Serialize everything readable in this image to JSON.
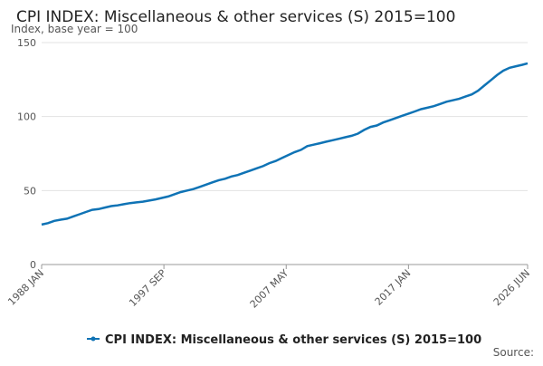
{
  "chart_data": {
    "type": "line",
    "title": "CPI INDEX: Miscellaneous & other services (S) 2015=100",
    "subtitle": "Index, base year = 100",
    "source": "Source:",
    "x": [
      "1988 JAN",
      "1988 JUL",
      "1989 JAN",
      "1989 JUL",
      "1990 JAN",
      "1990 JUL",
      "1991 JAN",
      "1991 JUL",
      "1992 JAN",
      "1992 JUL",
      "1993 JAN",
      "1993 JUL",
      "1994 JAN",
      "1994 JUL",
      "1995 JAN",
      "1995 JUL",
      "1996 JAN",
      "1996 JUL",
      "1997 JAN",
      "1997 JUL",
      "1998 JAN",
      "1998 JUL",
      "1999 JAN",
      "1999 JUL",
      "2000 JAN",
      "2000 JUL",
      "2001 JAN",
      "2001 JUL",
      "2002 JAN",
      "2002 JUL",
      "2003 JAN",
      "2003 JUL",
      "2004 JAN",
      "2004 JUL",
      "2005 JAN",
      "2005 JUL",
      "2006 JAN",
      "2006 JUL",
      "2007 JAN",
      "2007 JUL",
      "2008 JAN",
      "2008 JUL",
      "2009 JAN",
      "2009 JUL",
      "2010 JAN",
      "2010 JUL",
      "2011 JAN",
      "2011 JUL",
      "2012 JAN",
      "2012 JUL",
      "2013 JAN",
      "2013 JUL",
      "2014 JAN",
      "2014 JUL",
      "2015 JAN",
      "2015 JUL",
      "2016 JAN",
      "2016 JUL",
      "2017 JAN",
      "2017 JUL",
      "2018 JAN",
      "2018 JUL",
      "2019 JAN",
      "2019 JUL",
      "2020 JAN",
      "2020 JUL",
      "2021 JAN",
      "2021 JUL",
      "2022 JAN",
      "2022 JUL",
      "2023 JAN",
      "2023 JUL",
      "2024 JAN",
      "2024 JUL",
      "2025 JAN",
      "2025 JUL",
      "2026 JAN",
      "2026 JUN"
    ],
    "series": [
      {
        "name": "CPI INDEX: Miscellaneous & other services (S) 2015=100",
        "color": "#0f73b5",
        "values": [
          27,
          28,
          29.5,
          30.3,
          31,
          32.5,
          34,
          35.5,
          37,
          37.5,
          38.5,
          39.5,
          40,
          40.8,
          41.5,
          42,
          42.5,
          43.2,
          44,
          45,
          46,
          47.5,
          49,
          50,
          51,
          52.5,
          54,
          55.5,
          57,
          58,
          59.5,
          60.5,
          62,
          63.5,
          65,
          66.5,
          68.5,
          70,
          72,
          74,
          76,
          77.5,
          80,
          81,
          82,
          83,
          84,
          85,
          86,
          87,
          88.5,
          91,
          93,
          94,
          96,
          97.5,
          99,
          100.5,
          102,
          103.5,
          105,
          106,
          107,
          108.5,
          110,
          111,
          112,
          113.5,
          115,
          117.5,
          121,
          124.5,
          128,
          131,
          133,
          134,
          135,
          136
        ]
      }
    ],
    "xticks": [
      "1988 JAN",
      "1997 SEP",
      "2007 MAY",
      "2017 JAN",
      "2026 JUN"
    ],
    "ylim": [
      0,
      150
    ],
    "yticks": [
      0,
      50,
      100,
      150
    ],
    "grid": true
  }
}
